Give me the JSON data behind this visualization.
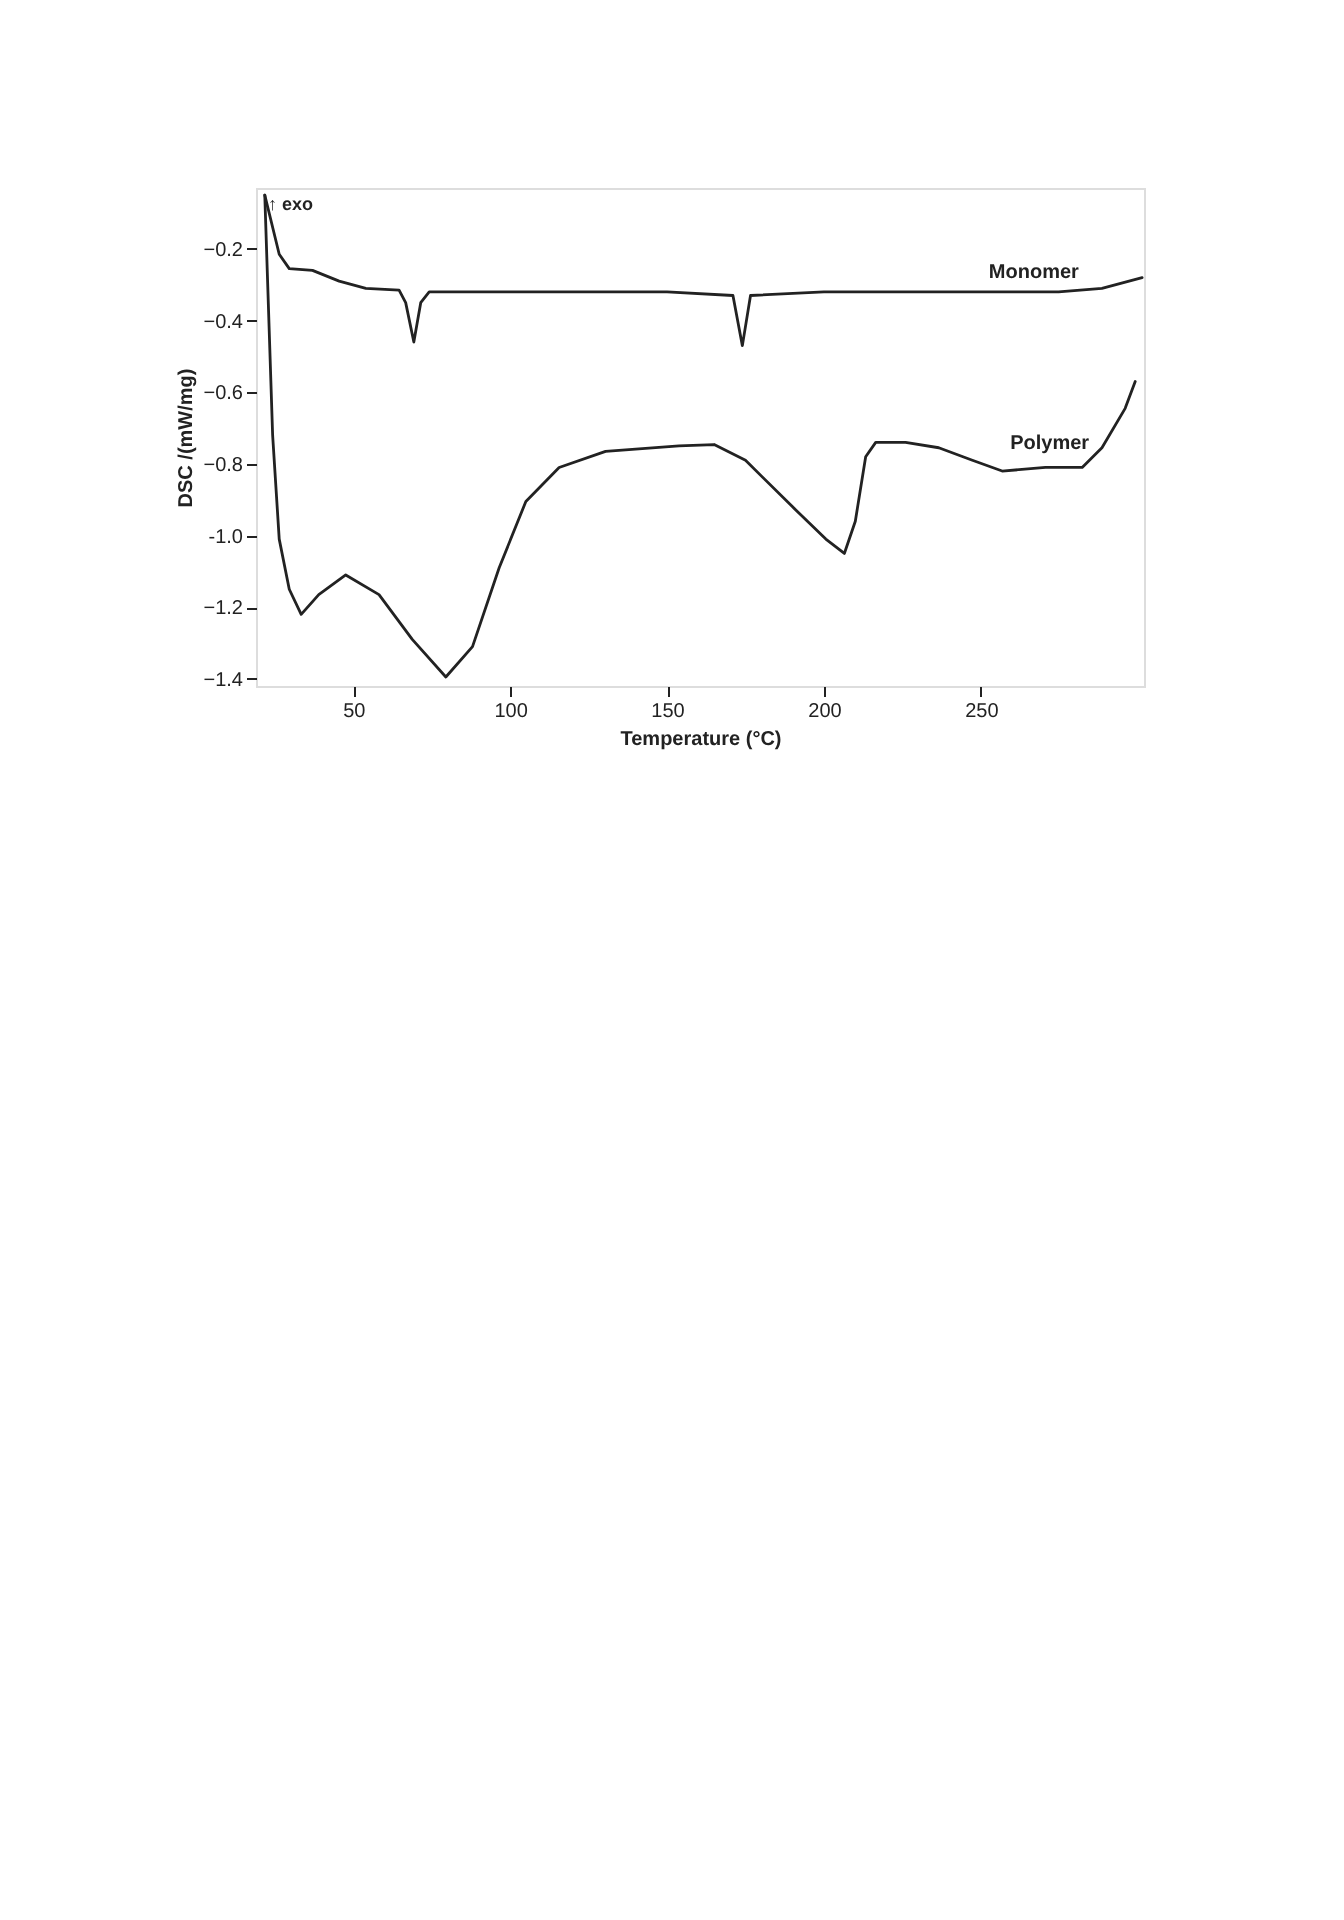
{
  "chart_data": {
    "type": "line",
    "xlabel": "Temperature (°C)",
    "ylabel": "DSC /(mW/mg)",
    "xlim": [
      19,
      302
    ],
    "ylim": [
      -1.42,
      -0.03
    ],
    "xticks": [
      50,
      100,
      150,
      200,
      250
    ],
    "yticks": [
      -0.2,
      -0.4,
      -0.6,
      -0.8,
      {
        "value": -1.0,
        "label": "-1.0"
      },
      -1.2,
      -1.4
    ],
    "grid": false,
    "legend": false,
    "marker": "none",
    "line_style": "solid",
    "annotations": [
      "↑ exo"
    ],
    "series": [
      {
        "name": "Monomer",
        "color": "#222222",
        "x": [
          21.8,
          26.4,
          29.6,
          37,
          45.5,
          54,
          64.6,
          66.7,
          69.3,
          71.5,
          74.2,
          100,
          150,
          171,
          174,
          176.6,
          200,
          250,
          274.8,
          288.6,
          301.4
        ],
        "values": [
          -0.05,
          -0.215,
          -0.255,
          -0.26,
          -0.29,
          -0.31,
          -0.315,
          -0.35,
          -0.46,
          -0.35,
          -0.32,
          -0.32,
          -0.32,
          -0.33,
          -0.47,
          -0.33,
          -0.32,
          -0.32,
          -0.32,
          -0.31,
          -0.28
        ]
      },
      {
        "name": "Polymer",
        "color": "#222222",
        "x": [
          21.8,
          24.3,
          26.4,
          29.6,
          33.4,
          39,
          47.6,
          58.2,
          68.8,
          79.5,
          88,
          96.5,
          105,
          115.6,
          130.4,
          153.8,
          165,
          175,
          190,
          200.6,
          206.5,
          210,
          213.3,
          216.5,
          226,
          236.6,
          247.3,
          256.8,
          270.6,
          282.3,
          288.6,
          296,
          299.2
        ],
        "values": [
          -0.05,
          -0.72,
          -1.01,
          -1.15,
          -1.22,
          -1.165,
          -1.11,
          -1.165,
          -1.29,
          -1.395,
          -1.31,
          -1.09,
          -0.905,
          -0.81,
          -0.765,
          -0.75,
          -0.746,
          -0.79,
          -0.92,
          -1.01,
          -1.05,
          -0.96,
          -0.78,
          -0.74,
          -0.74,
          -0.755,
          -0.79,
          -0.82,
          -0.81,
          -0.81,
          -0.755,
          -0.645,
          -0.57
        ]
      }
    ]
  }
}
